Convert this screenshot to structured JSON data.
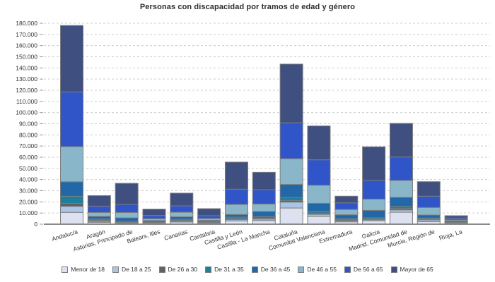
{
  "chart_data": {
    "type": "bar",
    "stacked": true,
    "title": "Personas con discapacidad por tramos de edad y género",
    "categories": [
      "Andalucía",
      "Aragón",
      "Asturias, Principado de",
      "Balears, Illes",
      "Canarias",
      "Cantabria",
      "Castilla y León",
      "Castilla - La Mancha",
      "Cataluña",
      "Comunitat Valenciana",
      "Extremadura",
      "Galicia",
      "Madrid, Comunidad de",
      "Murcia, Región de",
      "Rioja, La"
    ],
    "series": [
      {
        "name": "Menor de 18",
        "color": "#dde1f0",
        "values": [
          10600,
          1700,
          700,
          500,
          1900,
          1000,
          3000,
          3300,
          14500,
          7000,
          2100,
          3200,
          10700,
          2300,
          750
        ]
      },
      {
        "name": "De 18 a 25",
        "color": "#aac4e6",
        "values": [
          5400,
          1000,
          500,
          400,
          800,
          400,
          1200,
          1300,
          5300,
          1800,
          900,
          800,
          2100,
          1500,
          400
        ]
      },
      {
        "name": "De 26 a 30",
        "color": "#5e6166",
        "values": [
          2700,
          900,
          400,
          400,
          600,
          300,
          800,
          900,
          1500,
          1200,
          800,
          600,
          1300,
          800,
          250
        ]
      },
      {
        "name": "De 31 a 35",
        "color": "#1b7f9e",
        "values": [
          6300,
          1000,
          900,
          600,
          1100,
          600,
          1300,
          1200,
          2700,
          1700,
          1200,
          1100,
          1900,
          900,
          500
        ]
      },
      {
        "name": "De 36 a 45",
        "color": "#2268a8",
        "values": [
          13000,
          2400,
          3200,
          1300,
          2200,
          1100,
          2400,
          4700,
          11600,
          7000,
          3400,
          6700,
          8000,
          2700,
          1050
        ]
      },
      {
        "name": "De 46 a 55",
        "color": "#8ab6ca",
        "values": [
          31500,
          3500,
          4800,
          1700,
          4100,
          1650,
          9000,
          6700,
          23100,
          16200,
          4800,
          10100,
          15200,
          6800,
          850
        ]
      },
      {
        "name": "De 56 a 65",
        "color": "#2f55c8",
        "values": [
          49000,
          5700,
          7200,
          2900,
          5700,
          2550,
          13700,
          12800,
          32100,
          22800,
          5900,
          16700,
          21000,
          10100,
          1700
        ]
      },
      {
        "name": "Mayor de 65",
        "color": "#3f4f7f",
        "values": [
          59500,
          9400,
          18900,
          5700,
          11400,
          6300,
          24200,
          15600,
          52600,
          30300,
          6000,
          30100,
          30100,
          13000,
          2100
        ]
      }
    ],
    "xlabel": "",
    "ylabel": "",
    "ylim": [
      0,
      180000
    ],
    "ytick_step": 10000,
    "ytick_labels": [
      "0",
      "10.000",
      "20.000",
      "30.000",
      "40.000",
      "50.000",
      "60.000",
      "70.000",
      "80.000",
      "90.000",
      "100.000",
      "110.000",
      "120.000",
      "130.000",
      "140.000",
      "150.000",
      "160.000",
      "170.000",
      "180.000"
    ],
    "grid": "horizontal-dashed",
    "legend_position": "bottom",
    "colors": {
      "grid": "#cccccc",
      "axis": "#8a8a8a",
      "tick": "#999999",
      "segment_border": "#7d7d7d",
      "text": "#333333",
      "title": "#2e2e2e"
    }
  }
}
